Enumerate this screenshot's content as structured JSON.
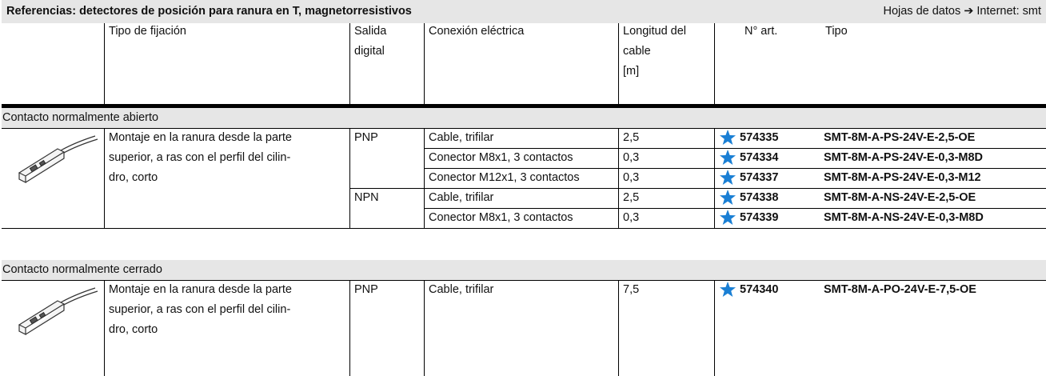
{
  "header": {
    "title": "Referencias: detectores de posición para ranura en T, magnetorresistivos",
    "datasheet": "Hojas de datos ➔ Internet: smt"
  },
  "table": {
    "columns": [
      [
        "Tipo de fijación"
      ],
      [
        "Salida",
        "digital"
      ],
      [
        "Conexión eléctrica"
      ],
      [
        "Longitud del",
        "cable",
        "[m]"
      ],
      [
        "N° art."
      ],
      [
        "Tipo"
      ]
    ],
    "sections": [
      {
        "title": "Contacto normalmente abierto",
        "mounting": [
          "Montaje en la ranura desde la parte",
          "superior, a ras con el perfil del cilin-",
          "dro, corto"
        ],
        "groups": [
          {
            "output": "PNP",
            "rows": [
              {
                "connection": "Cable, trifilar",
                "length": "2,5",
                "part": "574335",
                "type": "SMT-8M-A-PS-24V-E-2,5-OE"
              },
              {
                "connection": "Conector M8x1, 3 contactos",
                "length": "0,3",
                "part": "574334",
                "type": "SMT-8M-A-PS-24V-E-0,3-M8D"
              },
              {
                "connection": "Conector M12x1, 3 contactos",
                "length": "0,3",
                "part": "574337",
                "type": "SMT-8M-A-PS-24V-E-0,3-M12"
              }
            ]
          },
          {
            "output": "NPN",
            "rows": [
              {
                "connection": "Cable, trifilar",
                "length": "2,5",
                "part": "574338",
                "type": "SMT-8M-A-NS-24V-E-2,5-OE"
              },
              {
                "connection": "Conector M8x1, 3 contactos",
                "length": "0,3",
                "part": "574339",
                "type": "SMT-8M-A-NS-24V-E-0,3-M8D"
              }
            ]
          }
        ]
      },
      {
        "title": "Contacto normalmente cerrado",
        "mounting": [
          "Montaje en la ranura desde la parte",
          "superior, a ras con el perfil del cilin-",
          "dro, corto"
        ],
        "groups": [
          {
            "output": "PNP",
            "rows": [
              {
                "connection": "Cable, trifilar",
                "length": "7,5",
                "part": "574340",
                "type": "SMT-8M-A-PO-24V-E-7,5-OE"
              }
            ]
          }
        ]
      }
    ]
  }
}
